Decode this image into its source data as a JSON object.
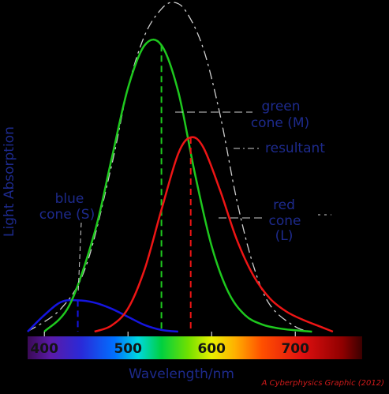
{
  "chart_data": {
    "type": "line",
    "xlabel": "Wavelength/nm",
    "ylabel": "Light Absorption",
    "xlim": [
      380,
      780
    ],
    "ylim": [
      0,
      1.0
    ],
    "xticks": [
      400,
      500,
      600,
      700
    ],
    "xtick_labels": [
      "400",
      "500",
      "600",
      "700"
    ],
    "spectrum_bar": true,
    "grid": false,
    "legend": "inline labels",
    "series": [
      {
        "name": "blue cone (S)",
        "label_lines": [
          "blue",
          "cone (S)"
        ],
        "color": "#1515e0",
        "peak_x": 440,
        "dash_style": "dashed",
        "x": [
          380,
          400,
          420,
          440,
          460,
          480,
          500,
          520,
          540,
          560
        ],
        "y": [
          0.0,
          0.05,
          0.09,
          0.095,
          0.088,
          0.07,
          0.045,
          0.02,
          0.005,
          0.0
        ]
      },
      {
        "name": "green cone (M)",
        "label_lines": [
          "green",
          "cone (M)"
        ],
        "color": "#1ec81e",
        "peak_x": 540,
        "dash_style": "dashed",
        "x": [
          400,
          430,
          460,
          480,
          500,
          520,
          540,
          560,
          580,
          600,
          620,
          640,
          660,
          680,
          700,
          720
        ],
        "y": [
          0.0,
          0.08,
          0.3,
          0.52,
          0.74,
          0.87,
          0.87,
          0.73,
          0.48,
          0.26,
          0.12,
          0.05,
          0.022,
          0.01,
          0.004,
          0.0
        ]
      },
      {
        "name": "red cone (L)",
        "label_lines": [
          "red",
          "cone",
          "(L)"
        ],
        "color": "#ee1515",
        "peak_x": 575,
        "dash_style": "dashed",
        "x": [
          460,
          480,
          500,
          520,
          540,
          560,
          575,
          590,
          610,
          630,
          650,
          670,
          690,
          710,
          730,
          745
        ],
        "y": [
          0.0,
          0.018,
          0.07,
          0.19,
          0.37,
          0.54,
          0.59,
          0.56,
          0.43,
          0.28,
          0.17,
          0.1,
          0.06,
          0.035,
          0.015,
          0.0
        ]
      },
      {
        "name": "resultant",
        "label_lines": [
          "resultant"
        ],
        "color": "#cfcfcf",
        "peak_x": 555,
        "dash_style": "dash-dot",
        "x": [
          380,
          420,
          450,
          480,
          500,
          520,
          540,
          555,
          570,
          590,
          610,
          630,
          650,
          670,
          700,
          720
        ],
        "y": [
          0.0,
          0.07,
          0.2,
          0.5,
          0.74,
          0.9,
          0.98,
          1.0,
          0.97,
          0.86,
          0.66,
          0.4,
          0.2,
          0.08,
          0.015,
          0.0
        ]
      }
    ],
    "annotations": [
      "A Cyberphysics Graphic (2012)"
    ]
  },
  "labels": {
    "blue_1": "blue",
    "blue_2": "cone (S)",
    "green_1": "green",
    "green_2": "cone (M)",
    "resultant": "resultant",
    "red_1": "red",
    "red_2": "cone",
    "red_3": "(L)",
    "credit": "A Cyberphysics Graphic (2012)"
  }
}
